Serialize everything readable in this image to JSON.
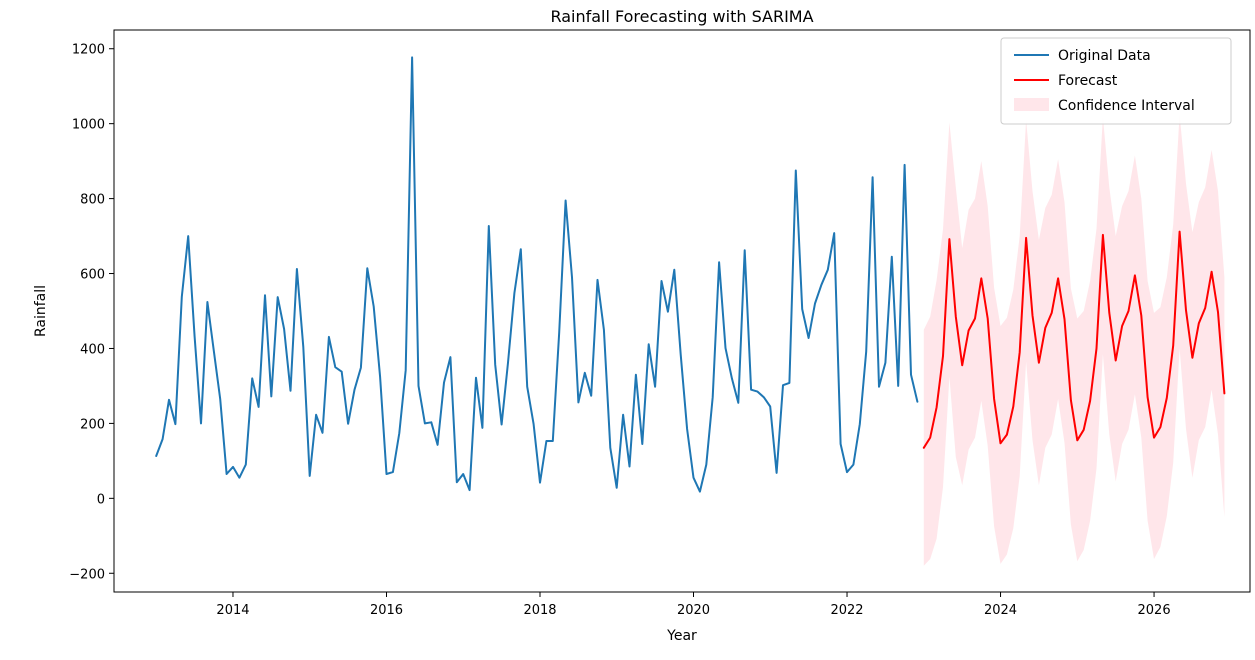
{
  "chart_data": {
    "type": "line",
    "title": "Rainfall Forecasting with SARIMA",
    "xlabel": "Year",
    "ylabel": "Rainfall",
    "xlim": [
      2012.45,
      2027.25
    ],
    "ylim": [
      -250,
      1250
    ],
    "x_ticks": [
      2014,
      2016,
      2018,
      2020,
      2022,
      2024,
      2026
    ],
    "y_ticks": [
      -200,
      0,
      200,
      400,
      600,
      800,
      1000,
      1200
    ],
    "x_tick_labels": [
      "2014",
      "2016",
      "2018",
      "2020",
      "2022",
      "2024",
      "2026"
    ],
    "y_tick_labels": [
      "−200",
      "0",
      "200",
      "400",
      "600",
      "800",
      "1000",
      "1200"
    ],
    "grid": false,
    "legend_position": "top-right",
    "series": [
      {
        "name": "Original Data",
        "color": "#1f77b4",
        "x_start": 2013.0,
        "x_step": 0.08333,
        "values": [
          113,
          158,
          263,
          198,
          538,
          700,
          432,
          200,
          524,
          394,
          265,
          65,
          84,
          55,
          90,
          320,
          244,
          542,
          272,
          537,
          452,
          287,
          612,
          404,
          60,
          223,
          175,
          431,
          350,
          338,
          199,
          290,
          349,
          614,
          512,
          324,
          65,
          70,
          174,
          342,
          1177,
          300,
          200,
          203,
          143,
          309,
          377,
          43,
          65,
          22,
          322,
          188,
          727,
          357,
          197,
          362,
          548,
          665,
          298,
          198,
          42,
          153,
          153,
          443,
          795,
          590,
          256,
          335,
          274,
          583,
          450,
          135,
          28,
          223,
          85,
          330,
          145,
          411,
          298,
          580,
          498,
          610,
          384,
          185,
          55,
          18,
          90,
          270,
          630,
          401,
          320,
          255,
          662,
          290,
          285,
          270,
          245,
          68,
          302,
          308,
          875,
          505,
          428,
          520,
          570,
          610,
          708,
          145,
          70,
          90,
          198,
          392,
          857,
          298,
          362,
          645,
          300,
          890,
          330,
          258
        ]
      },
      {
        "name": "Forecast",
        "color": "#ff0000",
        "x_start": 2023.0,
        "x_step": 0.08333,
        "values": [
          135,
          162,
          243,
          380,
          692,
          485,
          355,
          448,
          480,
          587,
          480,
          265,
          147,
          170,
          245,
          390,
          695,
          488,
          362,
          455,
          495,
          587,
          478,
          262,
          155,
          183,
          260,
          400,
          703,
          495,
          368,
          460,
          500,
          595,
          488,
          270,
          162,
          190,
          268,
          408,
          712,
          502,
          375,
          467,
          508,
          605,
          497,
          280
        ]
      }
    ],
    "confidence_interval": {
      "name": "Confidence Interval",
      "color": "#ffc0cb",
      "x_start": 2023.0,
      "x_step": 0.08333,
      "lower": [
        -180,
        -162,
        -108,
        30,
        325,
        110,
        35,
        130,
        162,
        260,
        140,
        -75,
        -175,
        -150,
        -80,
        60,
        365,
        155,
        35,
        135,
        170,
        265,
        148,
        -70,
        -168,
        -138,
        -60,
        80,
        385,
        170,
        45,
        145,
        183,
        278,
        162,
        -60,
        -162,
        -130,
        -48,
        95,
        400,
        185,
        55,
        155,
        190,
        290,
        170,
        -50
      ],
      "upper": [
        450,
        485,
        582,
        718,
        1003,
        830,
        668,
        770,
        800,
        900,
        780,
        562,
        460,
        482,
        557,
        700,
        1010,
        820,
        690,
        775,
        810,
        905,
        790,
        560,
        480,
        500,
        580,
        720,
        1018,
        830,
        700,
        780,
        820,
        915,
        800,
        580,
        495,
        510,
        590,
        730,
        1025,
        840,
        710,
        790,
        830,
        930,
        820,
        590
      ]
    }
  }
}
